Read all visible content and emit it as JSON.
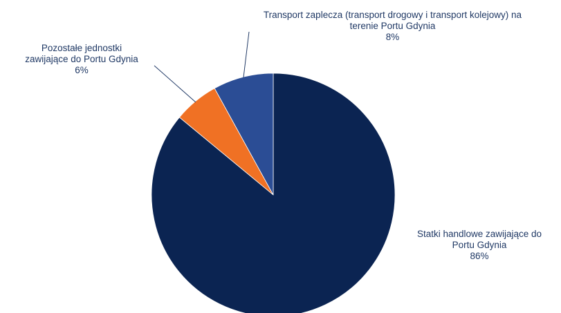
{
  "chart_data": {
    "type": "pie",
    "categories": [
      "Statki handlowe zawijające do Portu Gdynia",
      "Pozostałe jednostki zawijające do Portu Gdynia",
      "Transport zaplecza (transport drogowy i transport kolejowy) na terenie Portu Gdynia"
    ],
    "values": [
      86,
      6,
      8
    ],
    "value_labels": [
      "86%",
      "6%",
      "8%"
    ],
    "colors": [
      "#0b2452",
      "#f07124",
      "#2b4d95"
    ]
  }
}
